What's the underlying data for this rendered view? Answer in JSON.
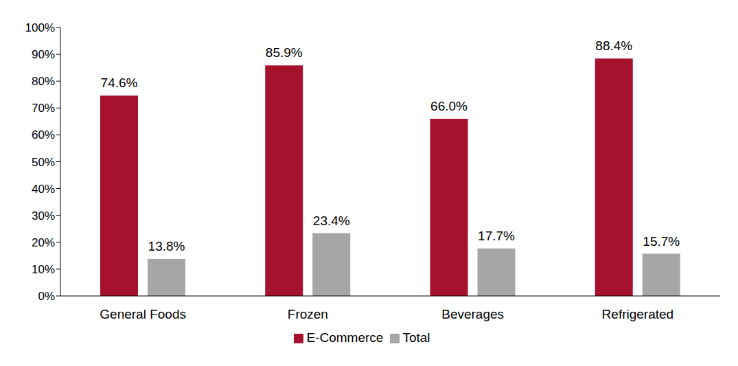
{
  "chart_data": {
    "type": "bar",
    "categories": [
      "General Foods",
      "Frozen",
      "Beverages",
      "Refrigerated"
    ],
    "series": [
      {
        "name": "E-Commerce",
        "color": "#a6122d",
        "values": [
          74.6,
          85.9,
          66.0,
          88.4
        ],
        "value_labels": [
          "74.6%",
          "85.9%",
          "66.0%",
          "88.4%"
        ]
      },
      {
        "name": "Total",
        "color": "#a6a6a6",
        "values": [
          13.8,
          23.4,
          17.7,
          15.7
        ],
        "value_labels": [
          "13.8%",
          "23.4%",
          "17.7%",
          "15.7%"
        ]
      }
    ],
    "ylim": [
      0,
      100
    ],
    "yticks": [
      {
        "value": 0,
        "label": "0%"
      },
      {
        "value": 10,
        "label": "10%"
      },
      {
        "value": 20,
        "label": "20%"
      },
      {
        "value": 30,
        "label": "30%"
      },
      {
        "value": 40,
        "label": "40%"
      },
      {
        "value": 50,
        "label": "50%"
      },
      {
        "value": 60,
        "label": "60%"
      },
      {
        "value": 70,
        "label": "70%"
      },
      {
        "value": 80,
        "label": "80%"
      },
      {
        "value": 90,
        "label": "90%"
      },
      {
        "value": 100,
        "label": "100%"
      }
    ],
    "grid": false,
    "data_labels": true,
    "legend": "bottom"
  }
}
